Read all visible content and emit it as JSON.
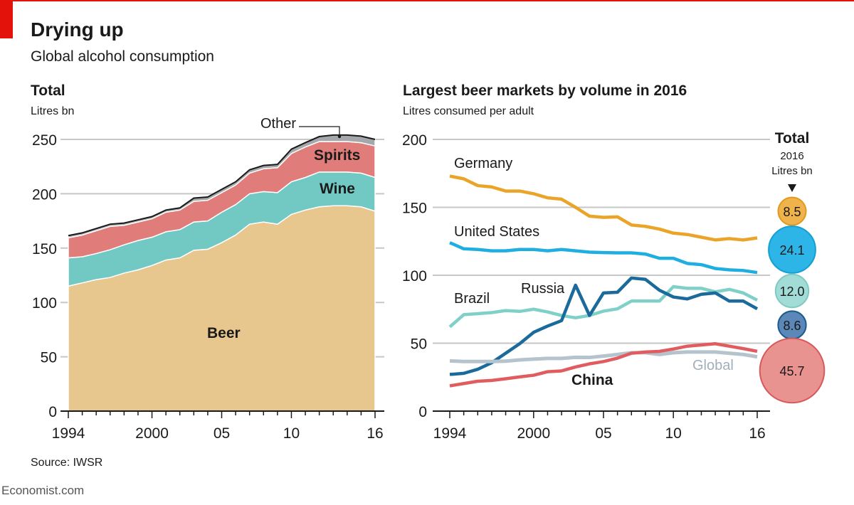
{
  "title": "Drying up",
  "subtitle": "Global alcohol consumption",
  "source": "Source: IWSR",
  "brand": "Economist.com",
  "chart_data": [
    {
      "type": "area",
      "stacked": true,
      "title": "Total",
      "ylabel": "Litres bn",
      "ylim": [
        0,
        250
      ],
      "yticks": [
        "0",
        "50",
        "100",
        "150",
        "200",
        "250"
      ],
      "xlim": [
        1994,
        2016
      ],
      "xtick_labels": [
        "1994",
        "2000",
        "05",
        "10",
        "16"
      ],
      "grid": true,
      "x": [
        1994,
        1995,
        1996,
        1997,
        1998,
        1999,
        2000,
        2001,
        2002,
        2003,
        2004,
        2005,
        2006,
        2007,
        2008,
        2009,
        2010,
        2011,
        2012,
        2013,
        2014,
        2015,
        2016
      ],
      "series": [
        {
          "name": "Beer",
          "color": "#e8c78f",
          "values": [
            115,
            118,
            121,
            123,
            127,
            130,
            134,
            139,
            141,
            148,
            149,
            155,
            162,
            172,
            174,
            172,
            181,
            185,
            188,
            189,
            189,
            188,
            184
          ]
        },
        {
          "name": "Wine",
          "color": "#72c9c4",
          "values": [
            26,
            24,
            24,
            25.5,
            26,
            27,
            26,
            26,
            26,
            26,
            26,
            28,
            28,
            28,
            28,
            29,
            30,
            30,
            32,
            31,
            31,
            31,
            31
          ]
        },
        {
          "name": "Spirits",
          "color": "#e07d7a",
          "values": [
            18.5,
            20,
            21,
            21.5,
            18,
            17,
            17,
            18,
            18,
            19,
            19,
            18,
            18,
            19,
            21,
            23,
            26,
            28,
            28,
            28,
            28,
            28,
            29
          ]
        },
        {
          "name": "Other",
          "color": "#a5a8ab",
          "values": [
            2,
            2,
            2,
            2,
            2,
            2,
            2,
            2,
            2,
            3,
            3,
            3,
            3,
            3,
            3,
            3,
            4,
            4,
            4.6,
            6,
            6,
            6,
            6
          ]
        }
      ]
    },
    {
      "type": "line",
      "title": "Largest beer markets by volume in 2016",
      "ylabel": "Litres consumed per adult",
      "ylim": [
        0,
        200
      ],
      "yticks": [
        "0",
        "50",
        "100",
        "150",
        "200"
      ],
      "xlim": [
        1994,
        2016
      ],
      "xtick_labels": [
        "1994",
        "2000",
        "05",
        "10",
        "16"
      ],
      "grid": true,
      "x": [
        1994,
        1995,
        1996,
        1997,
        1998,
        1999,
        2000,
        2001,
        2002,
        2003,
        2004,
        2005,
        2006,
        2007,
        2008,
        2009,
        2010,
        2011,
        2012,
        2013,
        2014,
        2015,
        2016
      ],
      "series": [
        {
          "name": "Germany",
          "color": "#eaa428",
          "values": [
            173,
            171,
            166,
            165,
            162,
            162,
            160,
            157,
            156,
            150,
            143.5,
            142.6,
            143,
            137,
            136,
            134,
            131,
            130,
            128,
            126,
            127,
            126,
            127.5
          ]
        },
        {
          "name": "United States",
          "color": "#1eaee0",
          "values": [
            124,
            119.5,
            119,
            118,
            118,
            119,
            119,
            118,
            119,
            118,
            117,
            116.7,
            116.5,
            116.5,
            115.6,
            112.5,
            112.5,
            108.7,
            107.8,
            105,
            104,
            103.5,
            102
          ]
        },
        {
          "name": "Brazil",
          "color": "#7fd0c8",
          "values": [
            62,
            71,
            71.7,
            72.5,
            74,
            73.4,
            75,
            73,
            70.4,
            68.7,
            70.4,
            73.6,
            75.3,
            81,
            81,
            81,
            91.6,
            90.4,
            90.4,
            87.8,
            89.6,
            87,
            81.7
          ]
        },
        {
          "name": "Russia",
          "color": "#1a6a9c",
          "values": [
            27,
            27.8,
            30.8,
            35.6,
            42.6,
            49.6,
            58,
            62.6,
            66.6,
            92.7,
            70.4,
            87,
            87.5,
            98,
            97,
            89,
            84,
            82.6,
            86,
            87,
            81,
            81,
            75.3
          ]
        },
        {
          "name": "Global",
          "color": "#b5c3cc",
          "values": [
            37,
            36.5,
            36.5,
            36.5,
            36.8,
            37.7,
            38.3,
            38.8,
            38.8,
            39.6,
            39.5,
            40.5,
            41.7,
            43,
            43,
            41.7,
            43,
            43.5,
            43.5,
            43.5,
            42.6,
            41.7,
            40
          ]
        },
        {
          "name": "China",
          "color": "#e05c5e",
          "values": [
            18.6,
            20.3,
            22,
            22.6,
            23.8,
            25.2,
            26.4,
            29,
            29.6,
            32.5,
            34.8,
            36.5,
            39,
            42.6,
            43.5,
            44,
            45.7,
            47.8,
            48.7,
            49.6,
            47.8,
            46,
            44
          ]
        }
      ],
      "totals": {
        "title": "Total",
        "year": "2016",
        "unit": "Litres bn",
        "items": [
          {
            "country": "Germany",
            "value": "8.5",
            "num": 8.5,
            "fill": "#f0b24a",
            "stroke": "#e09a20"
          },
          {
            "country": "United States",
            "value": "24.1",
            "num": 24.1,
            "fill": "#2cb5e6",
            "stroke": "#159fd2"
          },
          {
            "country": "Brazil",
            "value": "12.0",
            "num": 12.0,
            "fill": "#a2dcd6",
            "stroke": "#7fcbc3"
          },
          {
            "country": "Russia",
            "value": "8.6",
            "num": 8.6,
            "fill": "#5b88b8",
            "stroke": "#1a5a8c"
          },
          {
            "country": "China",
            "value": "45.7",
            "num": 45.7,
            "fill": "#e8938f",
            "stroke": "#d9585a"
          }
        ]
      }
    }
  ]
}
